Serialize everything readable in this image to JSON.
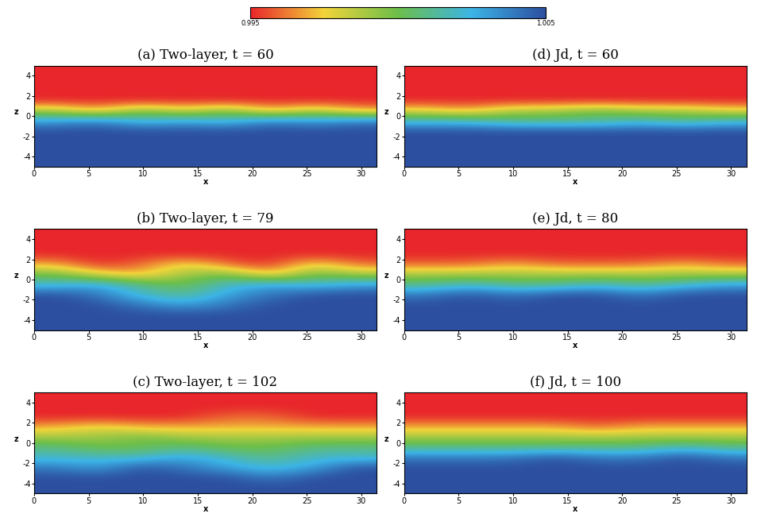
{
  "chart_data": [
    {
      "type": "heatmap",
      "title": "(a) Two-layer, t = 60",
      "x_label": "x",
      "y_label": "z",
      "xlim": [
        0,
        31.4
      ],
      "ylim": [
        -5,
        5
      ],
      "xticks": [
        0,
        5,
        10,
        15,
        20,
        25,
        30
      ],
      "yticks": [
        -4,
        -2,
        0,
        2,
        4
      ],
      "cells": [
        [
          1.005,
          1.005,
          1.005,
          1.005,
          1.005,
          1.005,
          1.005,
          1.005
        ],
        [
          1.005,
          1.005,
          1.005,
          1.005,
          1.005,
          1.005,
          1.005,
          1.005
        ],
        [
          1.005,
          1.005,
          1.005,
          1.005,
          1.005,
          1.005,
          1.005,
          1.005
        ],
        [
          1.005,
          1.005,
          1.005,
          1.005,
          1.005,
          1.005,
          1.005,
          1.005
        ],
        [
          1.003,
          1.004,
          1.002,
          1.003,
          1.002,
          1.004,
          1.003,
          1.004
        ],
        [
          0.999,
          0.997,
          1.0,
          0.998,
          1.0,
          0.997,
          0.999,
          0.997
        ],
        [
          0.995,
          0.995,
          0.995,
          0.995,
          0.995,
          0.995,
          0.995,
          0.995
        ],
        [
          0.995,
          0.995,
          0.995,
          0.995,
          0.995,
          0.995,
          0.995,
          0.995
        ],
        [
          0.995,
          0.995,
          0.995,
          0.995,
          0.995,
          0.995,
          0.995,
          0.995
        ],
        [
          0.995,
          0.995,
          0.995,
          0.995,
          0.995,
          0.995,
          0.995,
          0.995
        ]
      ]
    },
    {
      "type": "heatmap",
      "title": "(d) Jd, t = 60",
      "x_label": "x",
      "y_label": "z",
      "xlim": [
        0,
        31.4
      ],
      "ylim": [
        -5,
        5
      ],
      "xticks": [
        0,
        5,
        10,
        15,
        20,
        25,
        30
      ],
      "yticks": [
        -4,
        -2,
        0,
        2,
        4
      ],
      "cells": [
        [
          1.005,
          1.005,
          1.005,
          1.005,
          1.005,
          1.005,
          1.005,
          1.005
        ],
        [
          1.005,
          1.005,
          1.005,
          1.005,
          1.005,
          1.005,
          1.005,
          1.005
        ],
        [
          1.005,
          1.005,
          1.005,
          1.005,
          1.005,
          1.005,
          1.005,
          1.005
        ],
        [
          1.005,
          1.005,
          1.005,
          1.005,
          1.005,
          1.005,
          1.005,
          1.005
        ],
        [
          1.002,
          1.002,
          1.001,
          1.001,
          1.001,
          1.002,
          1.001,
          1.002
        ],
        [
          0.998,
          0.997,
          0.999,
          0.999,
          1.0,
          0.999,
          0.999,
          0.998
        ],
        [
          0.995,
          0.995,
          0.995,
          0.995,
          0.995,
          0.995,
          0.995,
          0.995
        ],
        [
          0.995,
          0.995,
          0.995,
          0.995,
          0.995,
          0.995,
          0.995,
          0.995
        ],
        [
          0.995,
          0.995,
          0.995,
          0.995,
          0.995,
          0.995,
          0.995,
          0.995
        ],
        [
          0.995,
          0.995,
          0.995,
          0.995,
          0.995,
          0.995,
          0.995,
          0.995
        ]
      ]
    },
    {
      "type": "heatmap",
      "title": "(b) Two-layer, t = 79",
      "x_label": "x",
      "y_label": "z",
      "xlim": [
        0,
        31.4
      ],
      "ylim": [
        -5,
        5
      ],
      "xticks": [
        0,
        5,
        10,
        15,
        20,
        25,
        30
      ],
      "yticks": [
        -4,
        -2,
        0,
        2,
        4
      ],
      "cells": [
        [
          1.005,
          1.005,
          1.005,
          1.005,
          1.005,
          1.005,
          1.005,
          1.005
        ],
        [
          1.005,
          1.005,
          1.005,
          1.005,
          1.005,
          1.005,
          1.005,
          1.005
        ],
        [
          1.005,
          1.005,
          1.004,
          1.003,
          1.004,
          1.005,
          1.005,
          1.005
        ],
        [
          1.005,
          1.004,
          1.002,
          1.001,
          1.003,
          1.004,
          1.005,
          1.005
        ],
        [
          1.002,
          1.003,
          1.001,
          1.0,
          1.002,
          1.003,
          1.002,
          1.003
        ],
        [
          1.0,
          0.998,
          0.997,
          0.999,
          1.0,
          0.997,
          1.0,
          0.999
        ],
        [
          0.997,
          0.995,
          0.996,
          0.998,
          0.996,
          0.995,
          0.998,
          0.996
        ],
        [
          0.995,
          0.995,
          0.995,
          0.995,
          0.995,
          0.995,
          0.995,
          0.995
        ],
        [
          0.995,
          0.995,
          0.995,
          0.995,
          0.995,
          0.995,
          0.995,
          0.995
        ],
        [
          0.995,
          0.995,
          0.995,
          0.995,
          0.995,
          0.995,
          0.995,
          0.995
        ]
      ]
    },
    {
      "type": "heatmap",
      "title": "(e) Jd, t = 80",
      "x_label": "x",
      "y_label": "z",
      "xlim": [
        0,
        31.4
      ],
      "ylim": [
        -5,
        5
      ],
      "xticks": [
        0,
        5,
        10,
        15,
        20,
        25,
        30
      ],
      "yticks": [
        -4,
        -2,
        0,
        2,
        4
      ],
      "cells": [
        [
          1.005,
          1.005,
          1.005,
          1.005,
          1.005,
          1.005,
          1.005,
          1.005
        ],
        [
          1.005,
          1.005,
          1.005,
          1.005,
          1.005,
          1.005,
          1.005,
          1.005
        ],
        [
          1.005,
          1.005,
          1.005,
          1.005,
          1.005,
          1.005,
          1.005,
          1.005
        ],
        [
          1.004,
          1.005,
          1.004,
          1.005,
          1.005,
          1.004,
          1.005,
          1.005
        ],
        [
          1.001,
          1.002,
          1.001,
          1.001,
          1.002,
          1.001,
          1.002,
          1.003
        ],
        [
          0.999,
          0.999,
          0.999,
          0.999,
          0.999,
          0.999,
          0.999,
          0.999
        ],
        [
          0.996,
          0.996,
          0.997,
          0.996,
          0.996,
          0.996,
          0.997,
          0.996
        ],
        [
          0.995,
          0.995,
          0.995,
          0.995,
          0.995,
          0.995,
          0.995,
          0.995
        ],
        [
          0.995,
          0.995,
          0.995,
          0.995,
          0.995,
          0.995,
          0.995,
          0.995
        ],
        [
          0.995,
          0.995,
          0.995,
          0.995,
          0.995,
          0.995,
          0.995,
          0.995
        ]
      ]
    },
    {
      "type": "heatmap",
      "title": "(c) Two-layer, t = 102",
      "x_label": "x",
      "y_label": "z",
      "xlim": [
        0,
        31.4
      ],
      "ylim": [
        -5,
        5
      ],
      "xticks": [
        0,
        5,
        10,
        15,
        20,
        25,
        30
      ],
      "yticks": [
        -4,
        -2,
        0,
        2,
        4
      ],
      "cells": [
        [
          1.005,
          1.005,
          1.005,
          1.005,
          1.005,
          1.005,
          1.005,
          1.005
        ],
        [
          1.005,
          1.005,
          1.005,
          1.005,
          1.005,
          1.004,
          1.005,
          1.005
        ],
        [
          1.004,
          1.003,
          1.005,
          1.004,
          1.003,
          1.002,
          1.003,
          1.005
        ],
        [
          1.002,
          1.002,
          1.002,
          1.003,
          1.002,
          1.001,
          1.002,
          1.002
        ],
        [
          1.001,
          1.0,
          1.0,
          1.001,
          1.0,
          1.0,
          1.001,
          1.001
        ],
        [
          0.999,
          0.999,
          1.0,
          0.999,
          0.999,
          0.999,
          0.999,
          0.999
        ],
        [
          0.997,
          0.998,
          0.997,
          0.997,
          0.997,
          0.997,
          0.997,
          0.997
        ],
        [
          0.995,
          0.995,
          0.995,
          0.995,
          0.996,
          0.996,
          0.995,
          0.995
        ],
        [
          0.995,
          0.995,
          0.995,
          0.995,
          0.995,
          0.995,
          0.995,
          0.995
        ],
        [
          0.995,
          0.995,
          0.995,
          0.995,
          0.995,
          0.995,
          0.995,
          0.995
        ]
      ]
    },
    {
      "type": "heatmap",
      "title": "(f) Jd, t = 100",
      "x_label": "x",
      "y_label": "z",
      "xlim": [
        0,
        31.4
      ],
      "ylim": [
        -5,
        5
      ],
      "xticks": [
        0,
        5,
        10,
        15,
        20,
        25,
        30
      ],
      "yticks": [
        -4,
        -2,
        0,
        2,
        4
      ],
      "cells": [
        [
          1.005,
          1.005,
          1.005,
          1.005,
          1.005,
          1.005,
          1.005,
          1.005
        ],
        [
          1.005,
          1.005,
          1.005,
          1.005,
          1.005,
          1.005,
          1.005,
          1.005
        ],
        [
          1.005,
          1.005,
          1.005,
          1.005,
          1.005,
          1.005,
          1.005,
          1.005
        ],
        [
          1.004,
          1.004,
          1.004,
          1.005,
          1.004,
          1.004,
          1.005,
          1.004
        ],
        [
          1.001,
          1.001,
          1.001,
          1.001,
          1.001,
          1.001,
          1.002,
          1.001
        ],
        [
          0.999,
          0.999,
          0.999,
          0.999,
          0.999,
          0.999,
          0.999,
          0.999
        ],
        [
          0.997,
          0.997,
          0.997,
          0.997,
          0.996,
          0.997,
          0.997,
          0.997
        ],
        [
          0.995,
          0.995,
          0.995,
          0.995,
          0.995,
          0.995,
          0.995,
          0.995
        ],
        [
          0.995,
          0.995,
          0.995,
          0.995,
          0.995,
          0.995,
          0.995,
          0.995
        ],
        [
          0.995,
          0.995,
          0.995,
          0.995,
          0.995,
          0.995,
          0.995,
          0.995
        ]
      ]
    }
  ],
  "colorbar": {
    "range": [
      0.995,
      1.005
    ],
    "ticks": [
      0.995,
      1.005
    ]
  }
}
